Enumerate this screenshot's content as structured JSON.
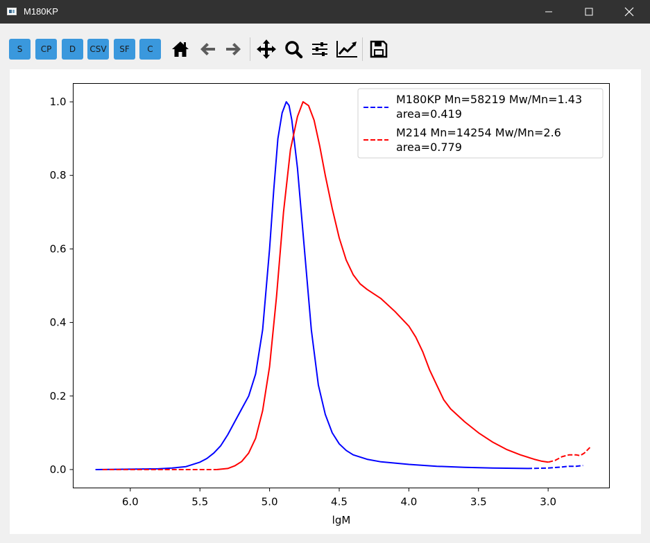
{
  "window": {
    "title": "M180KP"
  },
  "toolbar": {
    "buttons": [
      {
        "label": "S"
      },
      {
        "label": "CP"
      },
      {
        "label": "D"
      },
      {
        "label": "CSV"
      },
      {
        "label": "SF"
      },
      {
        "label": "C"
      }
    ],
    "icons": [
      "home-icon",
      "back-arrow-icon",
      "forward-arrow-icon",
      "pan-icon",
      "zoom-icon",
      "subplots-icon",
      "edit-curves-icon",
      "save-icon"
    ],
    "button_color": "#3a98dd"
  },
  "chart_data": {
    "type": "line",
    "xlabel": "lgM",
    "ylabel": "",
    "xlim": [
      6.41,
      2.56
    ],
    "ylim": [
      -0.05,
      1.05
    ],
    "x_reversed": true,
    "xticks": [
      "6.0",
      "5.5",
      "5.0",
      "4.5",
      "4.0",
      "3.5",
      "3.0"
    ],
    "yticks": [
      "0.0",
      "0.2",
      "0.4",
      "0.6",
      "0.8",
      "1.0"
    ],
    "grid": false,
    "legend_position": "top-right",
    "series": [
      {
        "name": "M180KP Mn=58219 Mw/Mn=1.43",
        "name_line2": "area=0.419",
        "color": "#0000ff",
        "solid": [
          [
            6.25,
            0.0
          ],
          [
            6.0,
            0.001
          ],
          [
            5.8,
            0.002
          ],
          [
            5.7,
            0.004
          ],
          [
            5.6,
            0.008
          ],
          [
            5.5,
            0.02
          ],
          [
            5.45,
            0.03
          ],
          [
            5.4,
            0.045
          ],
          [
            5.35,
            0.065
          ],
          [
            5.3,
            0.095
          ],
          [
            5.25,
            0.13
          ],
          [
            5.2,
            0.165
          ],
          [
            5.15,
            0.2
          ],
          [
            5.1,
            0.26
          ],
          [
            5.05,
            0.38
          ],
          [
            5.0,
            0.6
          ],
          [
            4.97,
            0.76
          ],
          [
            4.94,
            0.9
          ],
          [
            4.91,
            0.97
          ],
          [
            4.88,
            1.0
          ],
          [
            4.86,
            0.99
          ],
          [
            4.84,
            0.95
          ],
          [
            4.8,
            0.82
          ],
          [
            4.75,
            0.6
          ],
          [
            4.7,
            0.38
          ],
          [
            4.65,
            0.23
          ],
          [
            4.6,
            0.15
          ],
          [
            4.55,
            0.1
          ],
          [
            4.5,
            0.07
          ],
          [
            4.45,
            0.052
          ],
          [
            4.4,
            0.04
          ],
          [
            4.3,
            0.028
          ],
          [
            4.2,
            0.021
          ],
          [
            4.0,
            0.014
          ],
          [
            3.8,
            0.009
          ],
          [
            3.6,
            0.006
          ],
          [
            3.4,
            0.004
          ],
          [
            3.15,
            0.003
          ]
        ],
        "dashed": [
          [
            3.15,
            0.003
          ],
          [
            3.0,
            0.004
          ],
          [
            2.9,
            0.007
          ],
          [
            2.85,
            0.009
          ],
          [
            2.8,
            0.009
          ],
          [
            2.75,
            0.011
          ]
        ]
      },
      {
        "name": "M214 Mn=14254 Mw/Mn=2.6",
        "name_line2": "area=0.779",
        "color": "#ff0000",
        "dashed_left": [
          [
            6.2,
            0.0
          ],
          [
            5.9,
            0.0
          ],
          [
            5.6,
            0.0
          ],
          [
            5.38,
            0.0
          ]
        ],
        "solid": [
          [
            5.38,
            0.0
          ],
          [
            5.3,
            0.003
          ],
          [
            5.25,
            0.01
          ],
          [
            5.2,
            0.022
          ],
          [
            5.15,
            0.045
          ],
          [
            5.1,
            0.085
          ],
          [
            5.05,
            0.16
          ],
          [
            5.0,
            0.28
          ],
          [
            4.95,
            0.47
          ],
          [
            4.9,
            0.7
          ],
          [
            4.85,
            0.87
          ],
          [
            4.8,
            0.96
          ],
          [
            4.76,
            1.0
          ],
          [
            4.72,
            0.99
          ],
          [
            4.68,
            0.95
          ],
          [
            4.64,
            0.88
          ],
          [
            4.6,
            0.8
          ],
          [
            4.55,
            0.71
          ],
          [
            4.5,
            0.63
          ],
          [
            4.45,
            0.57
          ],
          [
            4.4,
            0.53
          ],
          [
            4.35,
            0.505
          ],
          [
            4.3,
            0.49
          ],
          [
            4.2,
            0.465
          ],
          [
            4.1,
            0.43
          ],
          [
            4.0,
            0.39
          ],
          [
            3.95,
            0.36
          ],
          [
            3.9,
            0.32
          ],
          [
            3.85,
            0.27
          ],
          [
            3.8,
            0.23
          ],
          [
            3.75,
            0.19
          ],
          [
            3.7,
            0.165
          ],
          [
            3.6,
            0.13
          ],
          [
            3.5,
            0.1
          ],
          [
            3.4,
            0.075
          ],
          [
            3.3,
            0.055
          ],
          [
            3.2,
            0.04
          ],
          [
            3.1,
            0.028
          ],
          [
            3.05,
            0.023
          ],
          [
            3.0,
            0.02
          ]
        ],
        "dashed": [
          [
            3.0,
            0.02
          ],
          [
            2.95,
            0.025
          ],
          [
            2.9,
            0.035
          ],
          [
            2.85,
            0.04
          ],
          [
            2.8,
            0.04
          ],
          [
            2.77,
            0.038
          ],
          [
            2.74,
            0.045
          ],
          [
            2.7,
            0.06
          ]
        ]
      }
    ]
  }
}
